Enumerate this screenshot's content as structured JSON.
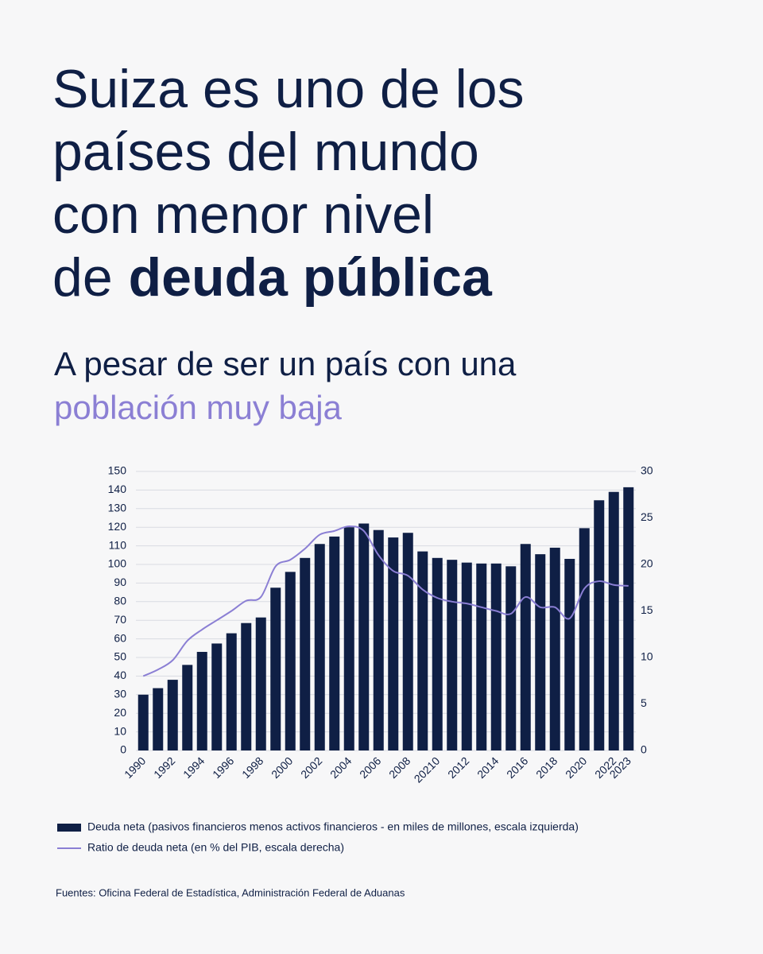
{
  "chart_data": {
    "type": "bar-line",
    "title": {
      "lines": [
        "Suiza es uno de los",
        "países del mundo",
        "con menor nivel"
      ],
      "last": "de",
      "bold": "deuda pública"
    },
    "subtitle": {
      "lines": [
        "A pesar de ser un país con una"
      ],
      "highlight": "población muy baja",
      "highlight_color": "#8b7fd4"
    },
    "categories": [
      "1990",
      null,
      "1992",
      null,
      "1994",
      null,
      "1996",
      null,
      "1998",
      null,
      "2000",
      null,
      "2002",
      null,
      "2004",
      null,
      "2006",
      null,
      "2008",
      null,
      "20210",
      null,
      "2012",
      null,
      "2014",
      null,
      "2016",
      null,
      "2018",
      null,
      "2020",
      null,
      "2022",
      "2023"
    ],
    "series": [
      {
        "name": "Deuda neta (pasivos financieros menos activos financieros - en miles de millones, escala izquierda)",
        "color": "#0f1f45",
        "values": [
          30,
          33.5,
          38,
          46,
          53,
          57.5,
          63,
          68.5,
          71.5,
          87.5,
          96,
          103.5,
          111,
          115,
          120,
          122,
          118.5,
          114.5,
          117,
          107,
          103.5,
          102.5,
          101,
          100.5,
          100.5,
          99,
          111,
          105.5,
          109,
          103,
          119.5,
          134.5,
          139,
          141.5
        ]
      },
      {
        "name": "Ratio de deuda neta (en % del PIB, escala derecha)",
        "color": "#8b7fd4",
        "axis": "y2",
        "values": [
          8.0,
          8.7,
          9.7,
          11.8,
          13.0,
          14.0,
          15.0,
          16.1,
          16.5,
          19.8,
          20.5,
          21.7,
          23.2,
          23.6,
          24.1,
          23.6,
          21.0,
          19.3,
          18.8,
          17.3,
          16.4,
          16.0,
          15.8,
          15.4,
          15.0,
          14.7,
          16.5,
          15.4,
          15.4,
          14.2,
          17.4,
          18.2,
          17.8,
          17.7
        ]
      }
    ],
    "ylim": [
      0,
      150
    ],
    "yticks": [
      0,
      10,
      20,
      30,
      40,
      50,
      60,
      70,
      80,
      90,
      100,
      110,
      120,
      130,
      140,
      150
    ],
    "y2lim": [
      0,
      30
    ],
    "y2ticks": [
      0,
      5,
      10,
      15,
      20,
      25,
      30
    ],
    "grid": true,
    "source": "Fuentes: Oficina Federal de Estadística, Administración Federal de Aduanas"
  }
}
